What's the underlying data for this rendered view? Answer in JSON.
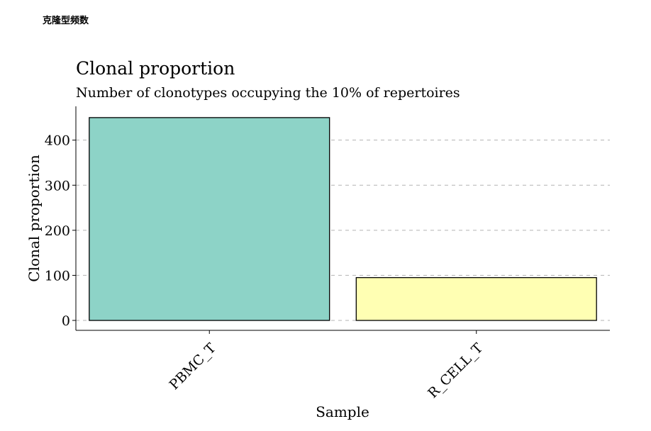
{
  "page": {
    "heading": "克隆型频数"
  },
  "chart_data": {
    "type": "bar",
    "title": "Clonal proportion",
    "subtitle": "Number of clonotypes occupying the 10% of repertoires",
    "xlabel": "Sample",
    "ylabel": "Clonal proportion",
    "categories": [
      "PBMC_T",
      "R_CELL_T"
    ],
    "values": [
      450,
      95
    ],
    "colors": [
      "#8dd3c7",
      "#ffffb3"
    ],
    "ylim": [
      -22,
      475
    ],
    "yticks": [
      0,
      100,
      200,
      300,
      400
    ],
    "grid": "horizontal-dashed",
    "legend": "none"
  }
}
